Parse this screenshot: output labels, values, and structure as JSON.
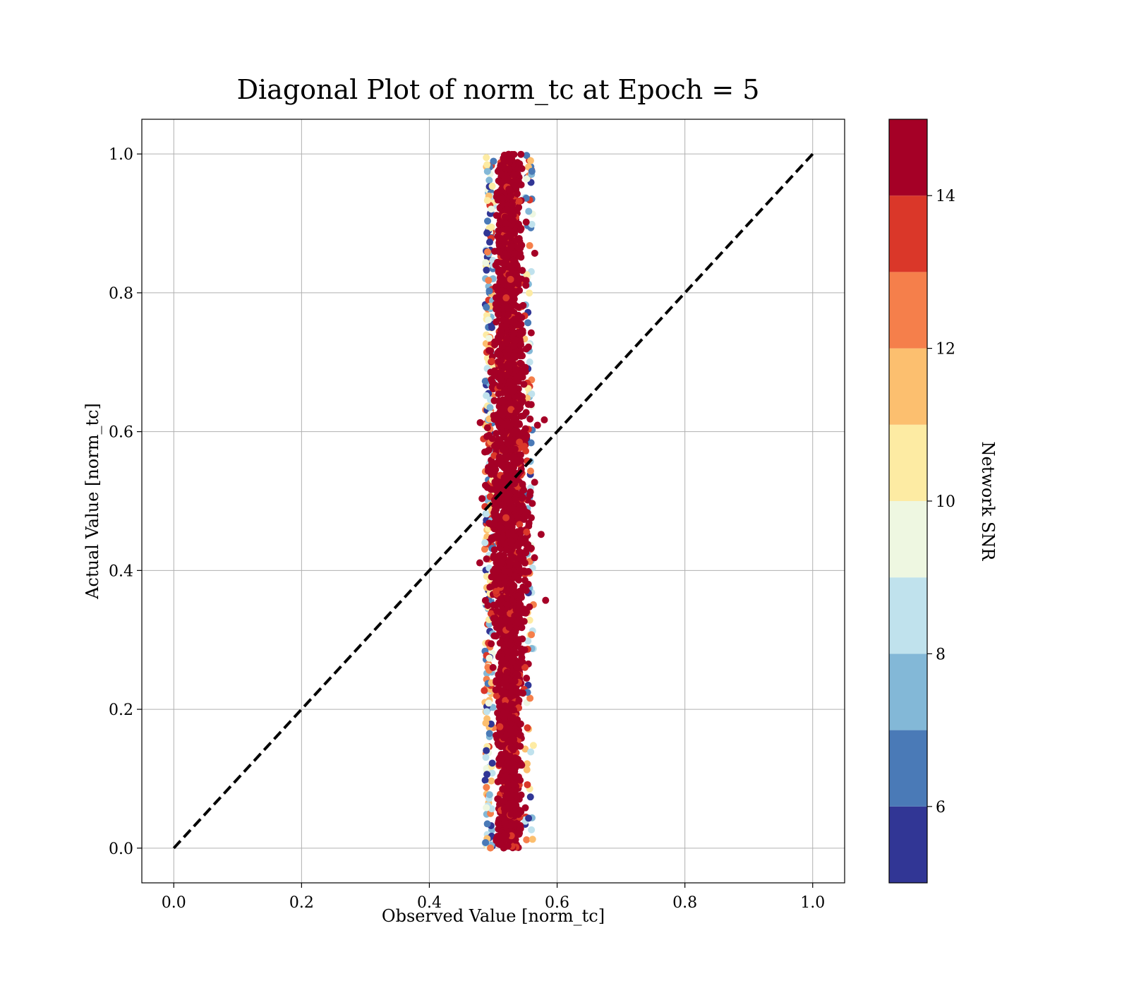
{
  "chart_data": {
    "type": "scatter",
    "title": "Diagonal Plot of norm_tc at Epoch = 5",
    "xlabel": "Observed Value [norm_tc]",
    "ylabel": "Actual Value [norm_tc]",
    "xlim": [
      -0.05,
      1.05
    ],
    "ylim": [
      -0.05,
      1.05
    ],
    "xticks": [
      0.0,
      0.2,
      0.4,
      0.6,
      0.8,
      1.0
    ],
    "yticks": [
      0.0,
      0.2,
      0.4,
      0.6,
      0.8,
      1.0
    ],
    "xtick_labels": [
      "0.0",
      "0.2",
      "0.4",
      "0.6",
      "0.8",
      "1.0"
    ],
    "ytick_labels": [
      "0.0",
      "0.2",
      "0.4",
      "0.6",
      "0.8",
      "1.0"
    ],
    "grid": true,
    "reference_line": {
      "style": "dashed",
      "color": "#000000",
      "from": [
        0.0,
        0.0
      ],
      "to": [
        1.0,
        1.0
      ]
    },
    "scatter_band": {
      "description": "dense vertical band of points",
      "x_center": 0.525,
      "x_range": [
        0.49,
        0.585
      ],
      "y_range": [
        0.0,
        1.0
      ],
      "dominant_color": "#a50026"
    },
    "outliers": [
      {
        "x": 0.58,
        "y": 0.617,
        "snr": 15
      },
      {
        "x": 0.582,
        "y": 0.357,
        "snr": 15
      },
      {
        "x": 0.575,
        "y": 0.452,
        "snr": 14
      },
      {
        "x": 0.565,
        "y": 0.857,
        "snr": 15
      },
      {
        "x": 0.486,
        "y": 0.227,
        "snr": 13
      },
      {
        "x": 0.488,
        "y": 0.008,
        "snr": 6
      },
      {
        "x": 0.487,
        "y": 0.44,
        "snr": 8
      }
    ],
    "colorbar": {
      "label": "Network SNR",
      "range": [
        5,
        15
      ],
      "boundaries": [
        5,
        6,
        7,
        8,
        9,
        10,
        11,
        12,
        13,
        14,
        15
      ],
      "colors": [
        "#313695",
        "#4a7ab7",
        "#83b8d7",
        "#c0e2ed",
        "#eef7e1",
        "#fdeba3",
        "#fcbf6f",
        "#f57f4b",
        "#da3729",
        "#a50026"
      ],
      "ticks": [
        6,
        8,
        10,
        12,
        14
      ],
      "tick_labels": [
        "6",
        "8",
        "10",
        "12",
        "14"
      ]
    }
  }
}
